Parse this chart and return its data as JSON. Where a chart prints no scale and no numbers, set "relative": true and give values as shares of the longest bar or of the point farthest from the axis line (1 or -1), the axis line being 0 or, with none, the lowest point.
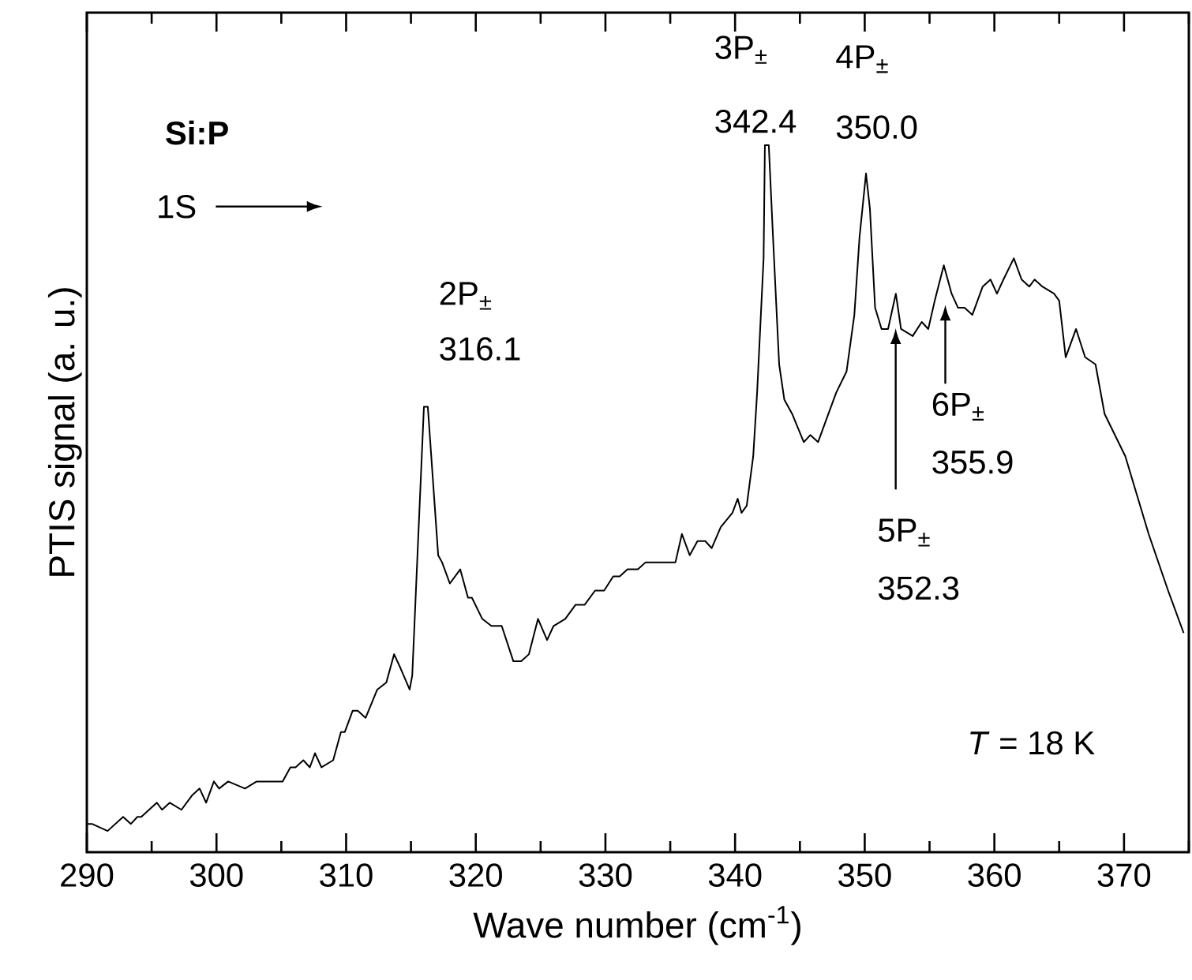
{
  "chart_data": {
    "type": "line",
    "relative": true,
    "xlabel": "Wave number (cm$^{-1}$)",
    "ylabel": "PTIS signal (a. u.)",
    "xlim": [
      290,
      375
    ],
    "xticks": [
      290,
      300,
      310,
      320,
      330,
      340,
      350,
      360,
      370
    ],
    "annotations": [
      "Si:P",
      "1S",
      "2P$_{±}$",
      "316.1",
      "3P$_{±}$",
      "342.4",
      "4P$_{±}$",
      "350.0",
      "5P$_{±}$",
      "352.3",
      "6P$_{±}$",
      "355.9",
      "*T* = 18 K"
    ],
    "series": [
      {
        "color": "#000000",
        "x": [
          290.0,
          290.4,
          291.6,
          292.8,
          293.4,
          293.9,
          294.2,
          295.4,
          295.8,
          296.4,
          297.3,
          298.1,
          298.7,
          299.2,
          299.8,
          300.2,
          300.9,
          302.2,
          303.1,
          303.9,
          304.5,
          305.1,
          305.7,
          306.1,
          306.7,
          307.2,
          307.6,
          308.1,
          309.0,
          309.6,
          309.9,
          310.5,
          310.9,
          311.5,
          312.4,
          313.1,
          313.7,
          314.2,
          314.9,
          315.1,
          316.0,
          316.3,
          317.1,
          317.4,
          318.0,
          318.8,
          319.4,
          319.7,
          320.5,
          321.2,
          322.0,
          322.9,
          323.5,
          324.1,
          324.8,
          325.5,
          326.0,
          326.9,
          327.7,
          328.4,
          329.2,
          329.9,
          330.6,
          331.1,
          331.7,
          332.5,
          333.1,
          333.5,
          334.1,
          334.5,
          335.4,
          335.9,
          336.5,
          337.1,
          337.7,
          338.2,
          338.9,
          339.8,
          340.2,
          340.5,
          340.9,
          341.4,
          341.7,
          342.2,
          342.3,
          342.6,
          342.9,
          343.4,
          343.8,
          344.4,
          345.3,
          345.8,
          346.4,
          347.0,
          347.8,
          348.6,
          349.2,
          349.6,
          350.1,
          350.4,
          350.8,
          351.3,
          351.8,
          352.4,
          352.8,
          353.7,
          354.4,
          354.9,
          355.4,
          356.1,
          356.7,
          357.2,
          357.7,
          358.3,
          359.1,
          359.7,
          360.2,
          360.7,
          361.5,
          362.1,
          362.7,
          363.1,
          363.7,
          364.6,
          365.0,
          365.5,
          366.3,
          367.0,
          367.8,
          368.5,
          370.1,
          371.9,
          373.4,
          374.6
        ],
        "values": [
          0.04,
          0.04,
          0.03,
          0.05,
          0.04,
          0.05,
          0.05,
          0.07,
          0.06,
          0.07,
          0.06,
          0.08,
          0.09,
          0.07,
          0.1,
          0.09,
          0.1,
          0.09,
          0.1,
          0.1,
          0.1,
          0.1,
          0.12,
          0.12,
          0.13,
          0.12,
          0.14,
          0.12,
          0.13,
          0.17,
          0.17,
          0.2,
          0.2,
          0.19,
          0.23,
          0.24,
          0.28,
          0.26,
          0.23,
          0.25,
          0.63,
          0.63,
          0.42,
          0.41,
          0.38,
          0.4,
          0.36,
          0.36,
          0.33,
          0.32,
          0.32,
          0.27,
          0.27,
          0.28,
          0.33,
          0.3,
          0.32,
          0.33,
          0.35,
          0.35,
          0.37,
          0.37,
          0.39,
          0.39,
          0.4,
          0.4,
          0.41,
          0.41,
          0.41,
          0.41,
          0.41,
          0.45,
          0.42,
          0.44,
          0.44,
          0.43,
          0.46,
          0.48,
          0.5,
          0.48,
          0.49,
          0.56,
          0.65,
          0.84,
          1.0,
          1.0,
          0.88,
          0.69,
          0.64,
          0.62,
          0.58,
          0.59,
          0.58,
          0.61,
          0.65,
          0.68,
          0.76,
          0.87,
          0.96,
          0.91,
          0.77,
          0.74,
          0.74,
          0.79,
          0.74,
          0.73,
          0.75,
          0.74,
          0.78,
          0.83,
          0.79,
          0.77,
          0.77,
          0.76,
          0.8,
          0.81,
          0.79,
          0.81,
          0.84,
          0.81,
          0.8,
          0.81,
          0.8,
          0.79,
          0.78,
          0.7,
          0.74,
          0.7,
          0.69,
          0.62,
          0.56,
          0.45,
          0.37,
          0.31
        ]
      }
    ]
  }
}
